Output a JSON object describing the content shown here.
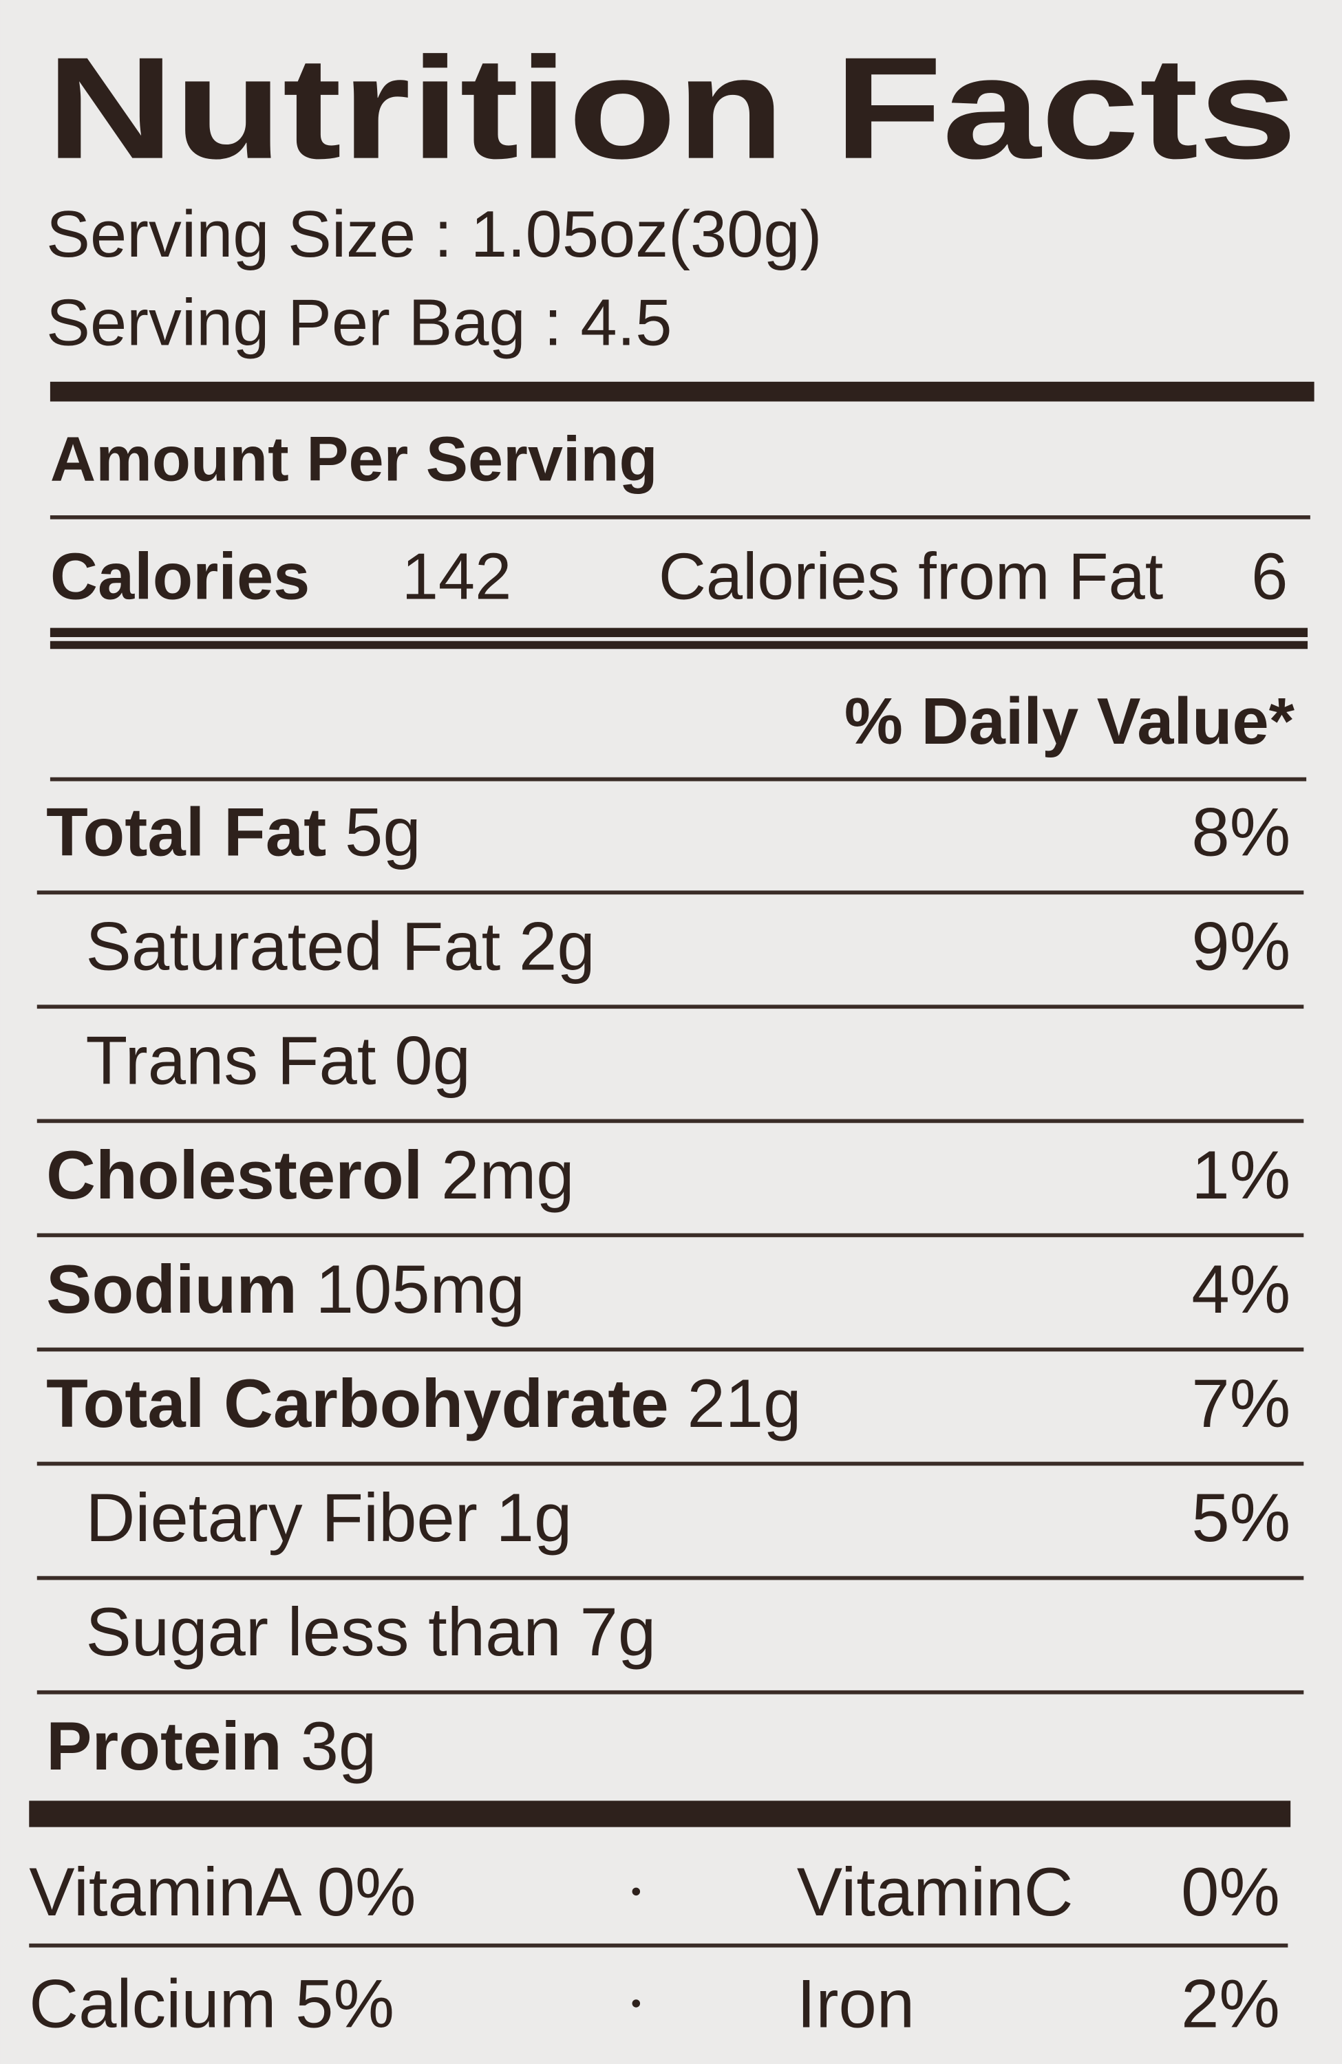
{
  "title": "Nutrition Facts",
  "serving_size": "Serving Size : 1.05oz(30g)",
  "servings_per_bag": "Serving Per Bag : 4.5",
  "amount_header": "Amount Per Serving",
  "calories": {
    "label": "Calories",
    "value": "142",
    "from_fat_label": "Calories from Fat",
    "from_fat": "6"
  },
  "dv_header": "% Daily Value*",
  "nutrients": [
    {
      "name": "Total Fat",
      "amount": "5g",
      "dv": "8%",
      "bold": true,
      "indent": false
    },
    {
      "name": "Saturated Fat",
      "amount": "2g",
      "dv": "9%",
      "bold": false,
      "indent": true
    },
    {
      "name": "Trans Fat",
      "amount": "0g",
      "dv": null,
      "bold": false,
      "indent": true
    },
    {
      "name": "Cholesterol",
      "amount": "2mg",
      "dv": "1%",
      "bold": true,
      "indent": false
    },
    {
      "name": "Sodium",
      "amount": "105mg",
      "dv": "4%",
      "bold": true,
      "indent": false
    },
    {
      "name": "Total Carbohydrate",
      "amount": "21g",
      "dv": "7%",
      "bold": true,
      "indent": false
    },
    {
      "name": "Dietary Fiber",
      "amount": "1g",
      "dv": "5%",
      "bold": false,
      "indent": true
    },
    {
      "name": "Sugar less than",
      "amount": "7g",
      "dv": null,
      "bold": false,
      "indent": true
    },
    {
      "name": "Protein",
      "amount": "3g",
      "dv": null,
      "bold": true,
      "indent": false
    }
  ],
  "vitamins": [
    {
      "left": "VitaminA 0%",
      "right_name": "VitaminC",
      "right_value": "0%"
    },
    {
      "left": "Calcium 5%",
      "right_name": "Iron",
      "right_value": "2%"
    }
  ]
}
